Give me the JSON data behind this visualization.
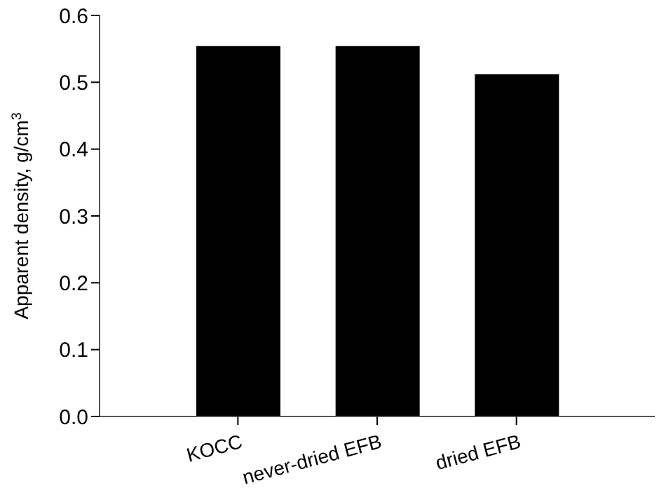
{
  "chart_data": {
    "type": "bar",
    "ylabel": "Apparent density, g/cm$^{3}$",
    "categories": [
      "KOCC",
      "never-dried EFB",
      "dried EFB"
    ],
    "values": [
      0.554,
      0.554,
      0.512
    ],
    "color": "#000000",
    "ylim": [
      0,
      0.6
    ],
    "yticks": [
      {
        "value": 0,
        "label": "0.0"
      },
      {
        "value": 0.1,
        "label": "0.1"
      },
      {
        "value": 0.2,
        "label": "0.2"
      },
      {
        "value": 0.3,
        "label": "0.3"
      },
      {
        "value": 0.4,
        "label": "0.4"
      },
      {
        "value": 0.5,
        "label": "0.5"
      },
      {
        "value": 0.6,
        "label": "0.6"
      }
    ],
    "grid": false,
    "legend": false
  }
}
